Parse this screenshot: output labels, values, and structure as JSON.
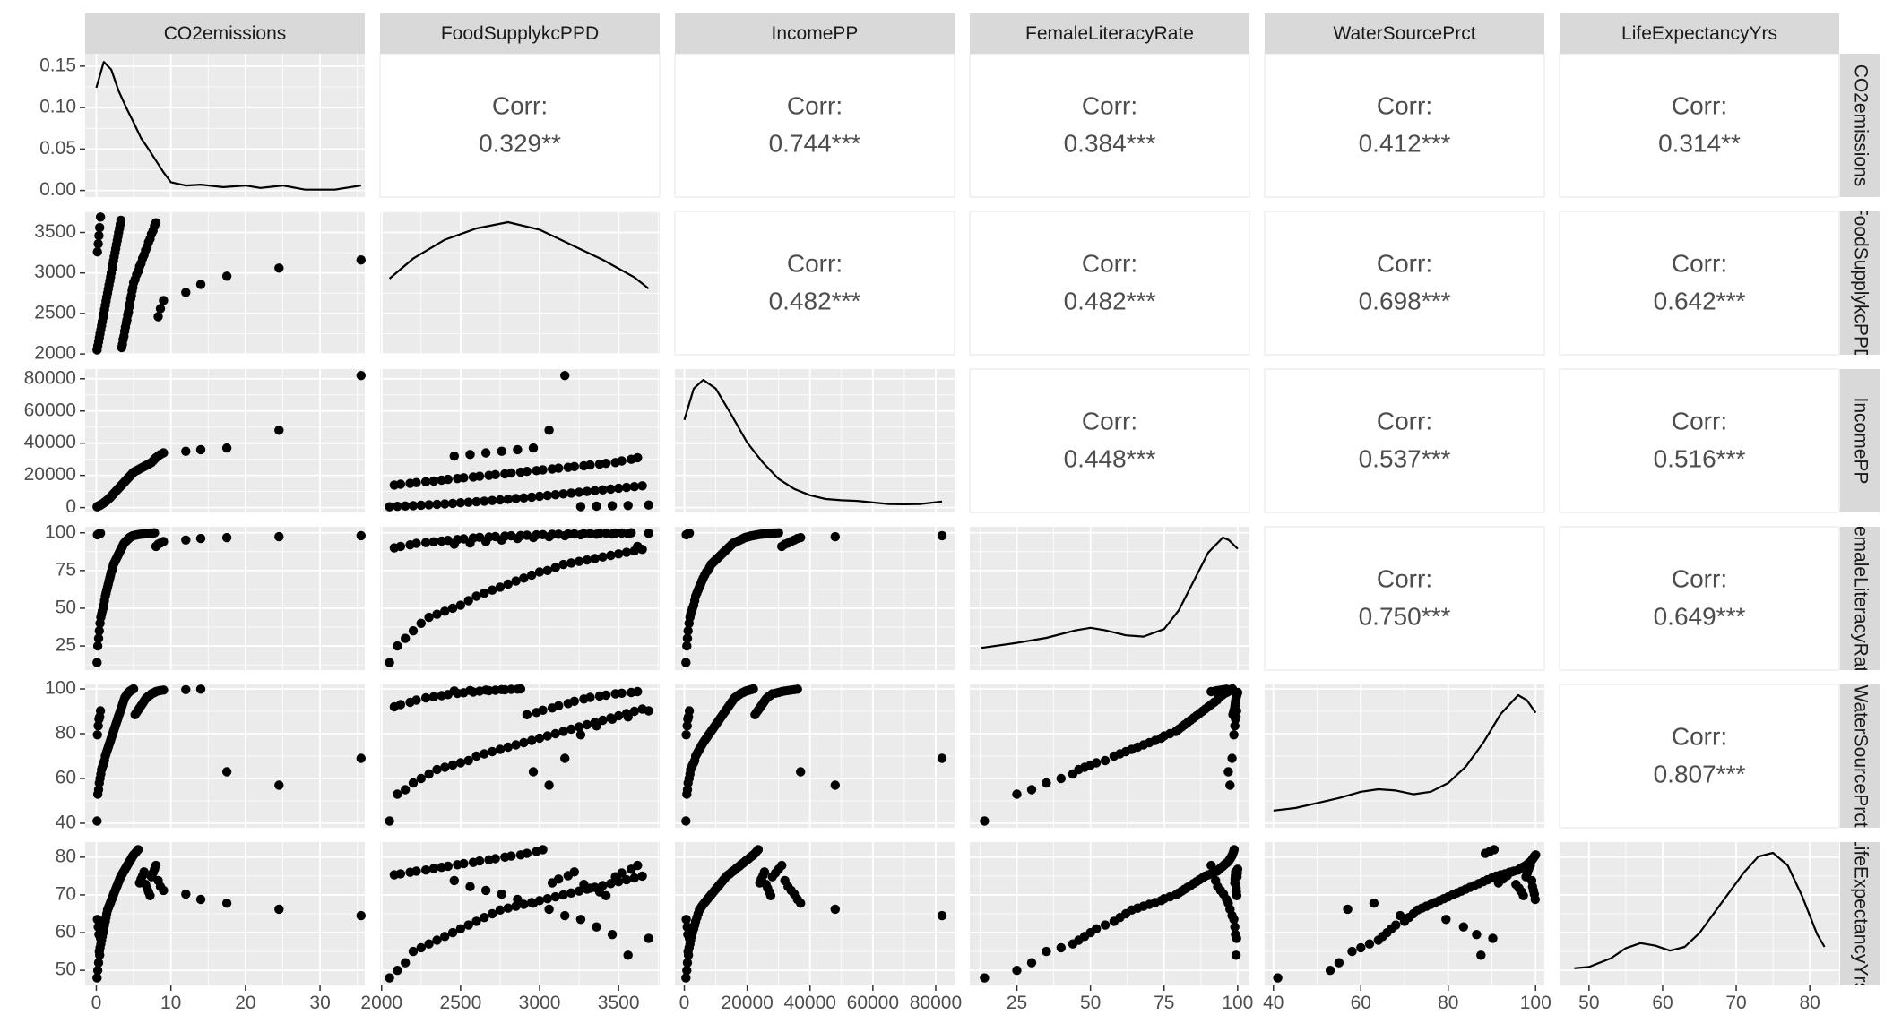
{
  "chart_data": {
    "type": "scatter",
    "title": "",
    "variables": [
      "CO2emissions",
      "FoodSupplykcPPD",
      "IncomePP",
      "FemaleLiteracyRate",
      "WaterSourcePrct",
      "LifeExpectancyYrs"
    ],
    "row_strip_labels": [
      "CO2emissions",
      "FoodSupplykcPPD",
      "IncomePP",
      "FemaleLiteracyRate",
      "WaterSourcePrct",
      "LifeExpectancyYrs"
    ],
    "x_axes": [
      {
        "variable": "CO2emissions",
        "range": [
          -1.5,
          36
        ],
        "ticks": [
          0,
          10,
          20,
          30
        ],
        "tick_labels": [
          "0",
          "10",
          "20",
          "30"
        ]
      },
      {
        "variable": "FoodSupplykcPPD",
        "range": [
          1990,
          3760
        ],
        "ticks": [
          2000,
          2500,
          3000,
          3500
        ],
        "tick_labels": [
          "2000",
          "2500",
          "3000",
          "3500"
        ]
      },
      {
        "variable": "IncomePP",
        "range": [
          -3000,
          86000
        ],
        "ticks": [
          0,
          20000,
          40000,
          60000,
          80000
        ],
        "tick_labels": [
          "0",
          "20000",
          "40000",
          "60000",
          "80000"
        ]
      },
      {
        "variable": "FemaleLiteracyRate",
        "range": [
          9,
          104
        ],
        "ticks": [
          25,
          50,
          75,
          100
        ],
        "tick_labels": [
          "25",
          "50",
          "75",
          "100"
        ]
      },
      {
        "variable": "WaterSourcePrct",
        "range": [
          38,
          102
        ],
        "ticks": [
          40,
          60,
          80,
          100
        ],
        "tick_labels": [
          "40",
          "60",
          "80",
          "100"
        ]
      },
      {
        "variable": "LifeExpectancyYrs",
        "range": [
          46,
          84
        ],
        "ticks": [
          50,
          60,
          70,
          80
        ],
        "tick_labels": [
          "50",
          "60",
          "70",
          "80"
        ]
      }
    ],
    "y_axes": [
      {
        "variable": "CO2emissions",
        "range": [
          -0.008,
          0.165
        ],
        "ticks": [
          0,
          0.05,
          0.1,
          0.15
        ],
        "tick_labels": [
          "0.00",
          "0.05",
          "0.10",
          "0.15"
        ]
      },
      {
        "variable": "FoodSupplykcPPD",
        "range": [
          1990,
          3760
        ],
        "ticks": [
          2000,
          2500,
          3000,
          3500
        ],
        "tick_labels": [
          "2000",
          "2500",
          "3000",
          "3500"
        ]
      },
      {
        "variable": "IncomePP",
        "range": [
          -3000,
          86000
        ],
        "ticks": [
          0,
          20000,
          40000,
          60000,
          80000
        ],
        "tick_labels": [
          "0",
          "20000",
          "40000",
          "60000",
          "80000"
        ]
      },
      {
        "variable": "FemaleLiteracyRate",
        "range": [
          9,
          104
        ],
        "ticks": [
          25,
          50,
          75,
          100
        ],
        "tick_labels": [
          "25",
          "50",
          "75",
          "100"
        ]
      },
      {
        "variable": "WaterSourcePrct",
        "range": [
          38,
          102
        ],
        "ticks": [
          40,
          60,
          80,
          100
        ],
        "tick_labels": [
          "40",
          "60",
          "80",
          "100"
        ]
      },
      {
        "variable": "LifeExpectancyYrs",
        "range": [
          46,
          84
        ],
        "ticks": [
          50,
          60,
          70,
          80
        ],
        "tick_labels": [
          "50",
          "60",
          "70",
          "80"
        ]
      }
    ],
    "correlations": [
      {
        "row": 0,
        "col": 1,
        "label": "Corr:",
        "value": "0.329**"
      },
      {
        "row": 0,
        "col": 2,
        "label": "Corr:",
        "value": "0.744***"
      },
      {
        "row": 0,
        "col": 3,
        "label": "Corr:",
        "value": "0.384***"
      },
      {
        "row": 0,
        "col": 4,
        "label": "Corr:",
        "value": "0.412***"
      },
      {
        "row": 0,
        "col": 5,
        "label": "Corr:",
        "value": "0.314**"
      },
      {
        "row": 1,
        "col": 2,
        "label": "Corr:",
        "value": "0.482***"
      },
      {
        "row": 1,
        "col": 3,
        "label": "Corr:",
        "value": "0.482***"
      },
      {
        "row": 1,
        "col": 4,
        "label": "Corr:",
        "value": "0.698***"
      },
      {
        "row": 1,
        "col": 5,
        "label": "Corr:",
        "value": "0.642***"
      },
      {
        "row": 2,
        "col": 3,
        "label": "Corr:",
        "value": "0.448***"
      },
      {
        "row": 2,
        "col": 4,
        "label": "Corr:",
        "value": "0.537***"
      },
      {
        "row": 2,
        "col": 5,
        "label": "Corr:",
        "value": "0.516***"
      },
      {
        "row": 3,
        "col": 4,
        "label": "Corr:",
        "value": "0.750***"
      },
      {
        "row": 3,
        "col": 5,
        "label": "Corr:",
        "value": "0.649***"
      },
      {
        "row": 4,
        "col": 5,
        "label": "Corr:",
        "value": "0.807***"
      }
    ],
    "densities": [
      {
        "variable": "CO2emissions",
        "x": [
          0,
          1,
          2,
          3,
          4,
          5,
          6,
          7,
          8,
          9,
          10,
          12,
          14,
          17,
          20,
          22,
          25,
          28,
          32,
          35.5
        ],
        "y": [
          0.124,
          0.155,
          0.146,
          0.12,
          0.1,
          0.082,
          0.063,
          0.05,
          0.036,
          0.022,
          0.01,
          0.006,
          0.007,
          0.004,
          0.006,
          0.003,
          0.006,
          0.001,
          0.001,
          0.006
        ]
      },
      {
        "variable": "FoodSupplykcPPD",
        "x": [
          2050,
          2200,
          2400,
          2600,
          2800,
          3000,
          3200,
          3400,
          3600,
          3690
        ],
        "y": [
          0.55,
          0.71,
          0.86,
          0.95,
          1.0,
          0.94,
          0.82,
          0.7,
          0.56,
          0.47
        ]
      },
      {
        "variable": "IncomePP",
        "x": [
          0,
          3000,
          6000,
          10000,
          15000,
          20000,
          25000,
          30000,
          35000,
          40000,
          45000,
          50000,
          55000,
          60000,
          65000,
          70000,
          75000,
          82000
        ],
        "y": [
          0.68,
          0.93,
          1.0,
          0.93,
          0.72,
          0.5,
          0.34,
          0.21,
          0.13,
          0.08,
          0.05,
          0.04,
          0.035,
          0.022,
          0.01,
          0.008,
          0.01,
          0.03
        ]
      },
      {
        "variable": "FemaleLiteracyRate",
        "x": [
          13,
          25,
          35,
          45,
          50,
          55,
          62,
          68,
          75,
          80,
          85,
          90,
          95,
          97,
          100
        ],
        "y": [
          0.12,
          0.16,
          0.2,
          0.26,
          0.28,
          0.26,
          0.22,
          0.21,
          0.27,
          0.42,
          0.65,
          0.88,
          1.0,
          0.98,
          0.91
        ]
      },
      {
        "variable": "WaterSourcePrct",
        "x": [
          40,
          45,
          50,
          55,
          60,
          64,
          68,
          72,
          76,
          80,
          84,
          88,
          92,
          96,
          98,
          100
        ],
        "y": [
          0.08,
          0.1,
          0.14,
          0.18,
          0.23,
          0.25,
          0.24,
          0.21,
          0.23,
          0.3,
          0.43,
          0.62,
          0.85,
          1.0,
          0.96,
          0.86
        ]
      },
      {
        "variable": "LifeExpectancyYrs",
        "x": [
          48,
          50,
          53,
          55,
          57,
          59,
          61,
          63,
          65,
          67,
          69,
          71,
          73,
          75,
          77,
          79,
          81,
          82
        ],
        "y": [
          0.08,
          0.09,
          0.16,
          0.24,
          0.28,
          0.26,
          0.22,
          0.25,
          0.36,
          0.52,
          0.68,
          0.84,
          0.97,
          1.0,
          0.9,
          0.65,
          0.35,
          0.25
        ]
      }
    ],
    "observations": {
      "CO2emissions": [
        0.1,
        0.2,
        0.3,
        0.4,
        0.5,
        0.6,
        0.7,
        0.8,
        0.9,
        1.0,
        1.1,
        1.2,
        1.3,
        1.4,
        1.5,
        1.6,
        1.7,
        1.8,
        1.9,
        2.0,
        2.1,
        2.2,
        2.3,
        2.4,
        2.5,
        2.6,
        2.7,
        2.8,
        2.9,
        3.0,
        3.1,
        3.2,
        3.3,
        3.4,
        3.5,
        3.6,
        3.7,
        3.8,
        3.9,
        4.0,
        4.1,
        4.2,
        4.3,
        4.4,
        4.5,
        4.6,
        4.7,
        4.8,
        4.9,
        5.0,
        5.2,
        5.4,
        5.6,
        5.8,
        6.0,
        6.2,
        6.4,
        6.6,
        6.8,
        7.0,
        7.2,
        7.4,
        7.6,
        7.8,
        8.0,
        8.3,
        8.6,
        9.0,
        12.0,
        14.0,
        17.5,
        24.5,
        35.5,
        0.15,
        0.25,
        0.35,
        0.45,
        0.55
      ],
      "FoodSupplykcPPD": [
        2050,
        2100,
        2150,
        2200,
        2250,
        2300,
        2350,
        2400,
        2450,
        2500,
        2550,
        2600,
        2650,
        2700,
        2750,
        2800,
        2850,
        2900,
        2950,
        3000,
        3050,
        3100,
        3150,
        3200,
        3250,
        3300,
        3350,
        3400,
        3450,
        3500,
        3550,
        3600,
        3650,
        2080,
        2120,
        2180,
        2220,
        2280,
        2330,
        2380,
        2420,
        2480,
        2520,
        2580,
        2620,
        2680,
        2720,
        2780,
        2820,
        2880,
        2920,
        2980,
        3020,
        3080,
        3120,
        3180,
        3220,
        3280,
        3320,
        3380,
        3420,
        3480,
        3520,
        3580,
        3620,
        2460,
        2560,
        2660,
        2760,
        2860,
        2960,
        3060,
        3160,
        3260,
        3360,
        3460,
        3560,
        3690
      ],
      "IncomePP": [
        500,
        800,
        1000,
        1200,
        1500,
        1800,
        2000,
        2300,
        2600,
        3000,
        3300,
        3600,
        4000,
        4400,
        4800,
        5200,
        5600,
        6000,
        6500,
        7000,
        7500,
        8000,
        8500,
        9000,
        9500,
        10000,
        10500,
        11000,
        11500,
        12000,
        12500,
        13000,
        13500,
        14000,
        14500,
        15000,
        15500,
        16000,
        16500,
        17000,
        17500,
        18000,
        18500,
        19000,
        19500,
        20000,
        20500,
        21000,
        21500,
        22000,
        22500,
        23000,
        23500,
        24000,
        24500,
        25000,
        25500,
        26000,
        26500,
        27000,
        27500,
        28000,
        29000,
        30000,
        31000,
        32000,
        33000,
        34000,
        35000,
        36000,
        37000,
        48000,
        82000,
        600,
        900,
        1100,
        1300,
        1600
      ],
      "FemaleLiteracyRate": [
        14,
        25,
        30,
        35,
        40,
        44,
        46,
        48,
        50,
        52,
        55,
        58,
        60,
        62,
        64,
        66,
        68,
        70,
        72,
        74,
        75,
        77,
        79,
        80,
        81,
        82,
        83,
        84,
        85,
        86,
        87,
        88,
        89,
        90,
        91,
        92,
        93,
        93.5,
        94,
        94.5,
        95,
        95.5,
        96,
        96.5,
        97,
        97.2,
        97.5,
        97.8,
        98,
        98.2,
        98.4,
        98.6,
        98.8,
        99,
        99.1,
        99.2,
        99.3,
        99.4,
        99.5,
        99.6,
        99.7,
        99.8,
        99.9,
        100,
        91,
        92.5,
        93.2,
        94.2,
        95.2,
        96.2,
        96.8,
        97.4,
        98.1,
        98.7,
        99.05,
        99.25,
        99.45,
        99.65
      ],
      "WaterSourcePrct": [
        41,
        53,
        55,
        58,
        60,
        62,
        64,
        65,
        66,
        67,
        68,
        70,
        71,
        72,
        73,
        74,
        75,
        76,
        77,
        78,
        79,
        80,
        81,
        82,
        83,
        84,
        85,
        86,
        87,
        88,
        89,
        90,
        91,
        92,
        93,
        94,
        95,
        96,
        96.5,
        97,
        97.5,
        98,
        98.3,
        98.6,
        99,
        99.2,
        99.4,
        99.6,
        99.8,
        100,
        88.5,
        89.5,
        90.5,
        91.5,
        92.5,
        93.5,
        94.5,
        95.5,
        96.2,
        96.8,
        97.2,
        97.8,
        98.1,
        98.4,
        98.8,
        99.1,
        99.3,
        99.5,
        99.7,
        99.9,
        63,
        57,
        69,
        79.5,
        83.5,
        86.5,
        87.5,
        90.2
      ],
      "LifeExpectancyYrs": [
        48,
        50,
        52,
        55,
        56,
        57,
        58,
        59,
        60,
        61,
        62,
        63,
        64,
        65,
        66,
        66.5,
        67,
        67.5,
        68,
        68.5,
        69,
        69.5,
        70,
        70.5,
        71,
        71.5,
        72,
        72.5,
        73,
        73.5,
        74,
        74.5,
        75,
        75.3,
        75.6,
        76,
        76.3,
        76.6,
        77,
        77.3,
        77.6,
        78,
        78.3,
        78.6,
        79,
        79.3,
        79.6,
        80,
        80.3,
        80.6,
        81,
        81.5,
        82,
        73.2,
        74.2,
        75.1,
        76.1,
        72.8,
        71.8,
        70.8,
        69.8,
        74.8,
        75.8,
        76.8,
        77.8,
        73.8,
        72.2,
        71.2,
        70.2,
        68.8,
        67.8,
        66.2,
        64.5,
        63.5,
        61.5,
        59.5,
        54,
        58.5
      ]
    }
  }
}
